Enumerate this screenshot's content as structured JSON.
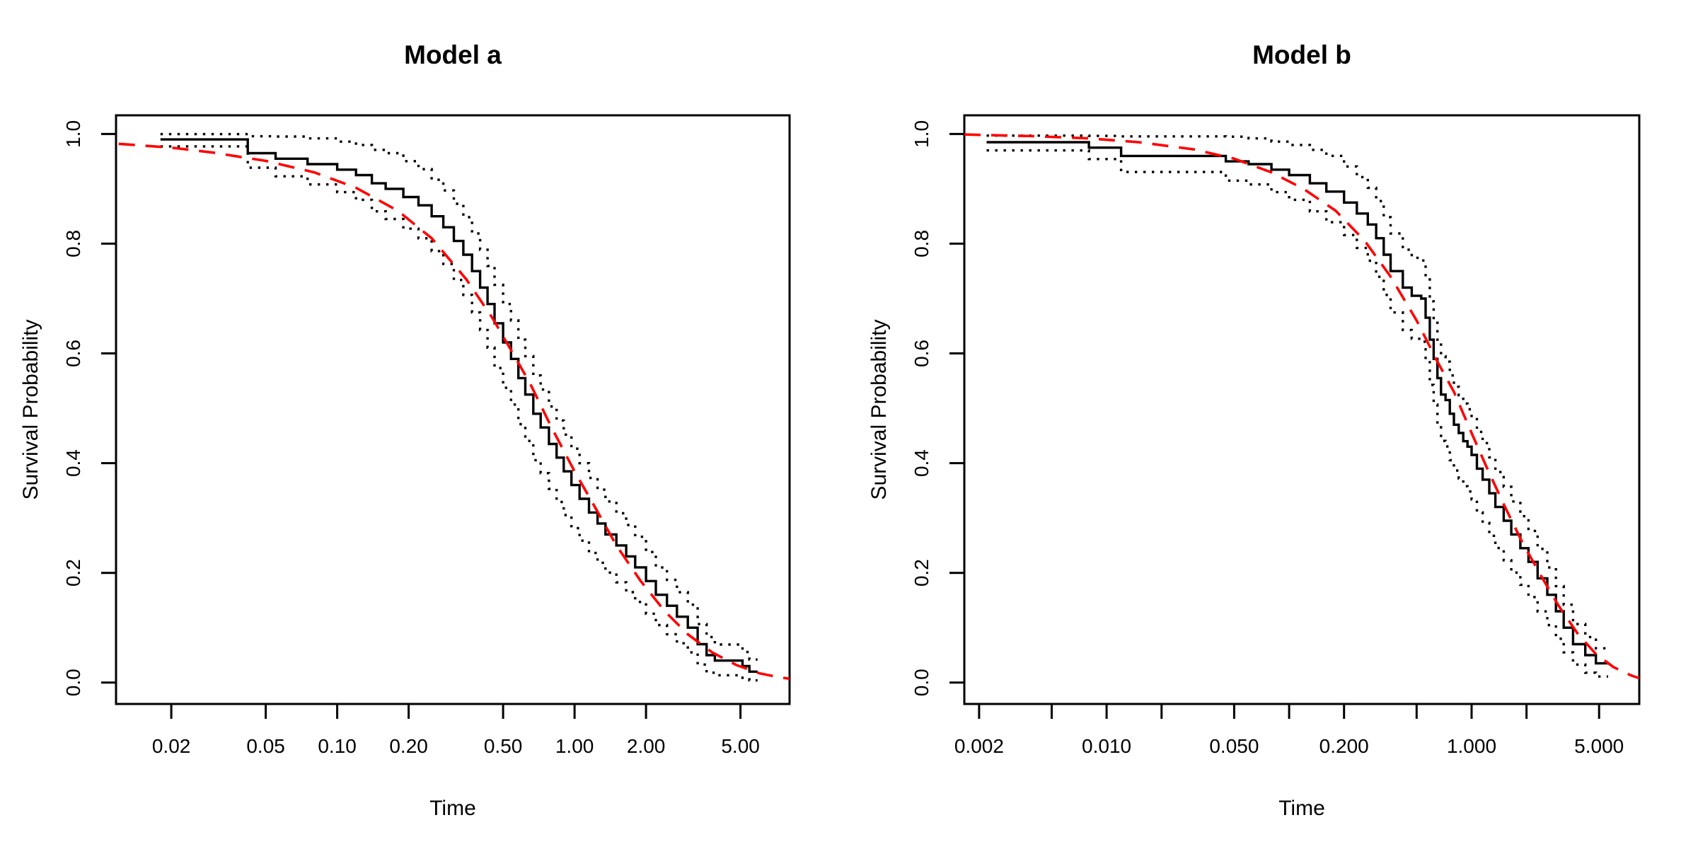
{
  "figure": {
    "background": "#ffffff",
    "foreground": "#000000",
    "fit_color": "#ff0000"
  },
  "chart_data": [
    {
      "type": "line",
      "title": "Model a",
      "xlabel": "Time",
      "ylabel": "Survival Probability",
      "xscale": "log",
      "grid": false,
      "legend": "none",
      "xlim": [
        0.0117,
        8.05
      ],
      "ylim": [
        -0.039,
        1.034
      ],
      "xticks": {
        "values": [
          0.02,
          0.05,
          0.1,
          0.2,
          0.5,
          1.0,
          2.0,
          5.0
        ],
        "labels": [
          "0.02",
          "0.05",
          "0.10",
          "0.20",
          "0.50",
          "1.00",
          "2.00",
          "5.00"
        ]
      },
      "yticks": {
        "values": [
          0.0,
          0.2,
          0.4,
          0.6,
          0.8,
          1.0
        ],
        "labels": [
          "0.0",
          "0.2",
          "0.4",
          "0.6",
          "0.8",
          "1.0"
        ]
      },
      "series": [
        {
          "name": "km-estimate",
          "kind": "step",
          "line": "solid",
          "color": "#000000",
          "t": [
            0.018,
            0.042,
            0.055,
            0.075,
            0.1,
            0.12,
            0.14,
            0.16,
            0.19,
            0.22,
            0.25,
            0.28,
            0.31,
            0.34,
            0.37,
            0.4,
            0.43,
            0.46,
            0.5,
            0.54,
            0.58,
            0.62,
            0.67,
            0.72,
            0.78,
            0.84,
            0.9,
            0.97,
            1.05,
            1.15,
            1.25,
            1.35,
            1.5,
            1.65,
            1.8,
            2.0,
            2.2,
            2.45,
            2.7,
            3.0,
            3.3,
            3.6,
            3.9,
            5.1,
            5.45
          ],
          "s": [
            0.99,
            0.965,
            0.955,
            0.945,
            0.935,
            0.925,
            0.91,
            0.9,
            0.885,
            0.87,
            0.85,
            0.83,
            0.805,
            0.78,
            0.75,
            0.72,
            0.69,
            0.655,
            0.62,
            0.59,
            0.555,
            0.525,
            0.49,
            0.465,
            0.435,
            0.41,
            0.385,
            0.36,
            0.335,
            0.31,
            0.29,
            0.27,
            0.25,
            0.23,
            0.21,
            0.185,
            0.16,
            0.14,
            0.12,
            0.1,
            0.07,
            0.05,
            0.04,
            0.03,
            0.02
          ],
          "end_t": 5.9
        },
        {
          "name": "fitted-parametric",
          "kind": "curve",
          "line": "dashed",
          "color": "#ff0000",
          "t": [
            0.012,
            0.02,
            0.03,
            0.05,
            0.08,
            0.12,
            0.18,
            0.25,
            0.35,
            0.45,
            0.55,
            0.65,
            0.8,
            1.0,
            1.2,
            1.5,
            1.9,
            2.4,
            3.0,
            3.8,
            4.8,
            6.0,
            7.2,
            8.05
          ],
          "s": [
            0.982,
            0.975,
            0.966,
            0.951,
            0.93,
            0.902,
            0.86,
            0.81,
            0.735,
            0.665,
            0.6,
            0.545,
            0.465,
            0.385,
            0.325,
            0.25,
            0.185,
            0.13,
            0.088,
            0.055,
            0.032,
            0.017,
            0.01,
            0.007
          ]
        }
      ],
      "ci_band": {
        "name": "pointwise-confidence-band",
        "line": "dotted",
        "color": "#000000",
        "s_ref": [
          1.0,
          0.985,
          0.95,
          0.9,
          0.8,
          0.65,
          0.5,
          0.35,
          0.2,
          0.1,
          0.05,
          0.02
        ],
        "upper_w": [
          0.005,
          0.012,
          0.045,
          0.065,
          0.068,
          0.07,
          0.07,
          0.066,
          0.055,
          0.042,
          0.033,
          0.022
        ],
        "lower_w": [
          0.008,
          0.015,
          0.035,
          0.055,
          0.072,
          0.082,
          0.085,
          0.078,
          0.062,
          0.045,
          0.032,
          0.016
        ]
      }
    },
    {
      "type": "line",
      "title": "Model b",
      "xlabel": "Time",
      "ylabel": "Survival Probability",
      "xscale": "log",
      "grid": false,
      "legend": "none",
      "xlim": [
        0.00166,
        8.3
      ],
      "ylim": [
        -0.039,
        1.034
      ],
      "xticks": {
        "values": [
          0.002,
          0.005,
          0.01,
          0.02,
          0.05,
          0.1,
          0.2,
          0.5,
          1.0,
          2.0,
          5.0
        ],
        "labels": [
          "0.002",
          "",
          "0.010",
          "",
          "0.050",
          "",
          "0.200",
          "",
          "1.000",
          "",
          "5.000"
        ]
      },
      "yticks": {
        "values": [
          0.0,
          0.2,
          0.4,
          0.6,
          0.8,
          1.0
        ],
        "labels": [
          "0.0",
          "0.2",
          "0.4",
          "0.6",
          "0.8",
          "1.0"
        ]
      },
      "series": [
        {
          "name": "km-estimate",
          "kind": "step",
          "line": "solid",
          "color": "#000000",
          "t": [
            0.0022,
            0.008,
            0.012,
            0.045,
            0.06,
            0.08,
            0.1,
            0.13,
            0.16,
            0.2,
            0.235,
            0.27,
            0.3,
            0.33,
            0.36,
            0.42,
            0.47,
            0.53,
            0.56,
            0.59,
            0.62,
            0.65,
            0.68,
            0.72,
            0.76,
            0.8,
            0.85,
            0.9,
            0.95,
            1.0,
            1.07,
            1.15,
            1.25,
            1.35,
            1.5,
            1.65,
            1.85,
            2.05,
            2.3,
            2.6,
            2.9,
            3.2,
            3.6,
            4.2,
            4.8
          ],
          "s": [
            0.985,
            0.975,
            0.96,
            0.95,
            0.945,
            0.935,
            0.925,
            0.91,
            0.895,
            0.875,
            0.855,
            0.835,
            0.81,
            0.78,
            0.75,
            0.72,
            0.705,
            0.7,
            0.665,
            0.625,
            0.59,
            0.555,
            0.525,
            0.515,
            0.49,
            0.47,
            0.455,
            0.44,
            0.43,
            0.415,
            0.39,
            0.37,
            0.345,
            0.32,
            0.295,
            0.27,
            0.245,
            0.22,
            0.19,
            0.16,
            0.13,
            0.1,
            0.07,
            0.05,
            0.035
          ],
          "end_t": 5.6
        },
        {
          "name": "fitted-parametric",
          "kind": "curve",
          "line": "dashed",
          "color": "#ff0000",
          "t": [
            0.00166,
            0.004,
            0.008,
            0.015,
            0.03,
            0.05,
            0.08,
            0.12,
            0.18,
            0.26,
            0.36,
            0.5,
            0.65,
            0.8,
            1.0,
            1.2,
            1.5,
            1.9,
            2.4,
            3.0,
            3.8,
            4.8,
            6.0,
            7.5,
            8.3
          ],
          "s": [
            0.999,
            0.996,
            0.992,
            0.985,
            0.972,
            0.955,
            0.93,
            0.9,
            0.86,
            0.805,
            0.74,
            0.66,
            0.585,
            0.53,
            0.455,
            0.395,
            0.325,
            0.255,
            0.195,
            0.14,
            0.09,
            0.052,
            0.028,
            0.013,
            0.008
          ]
        }
      ],
      "ci_band": {
        "name": "pointwise-confidence-band",
        "line": "dotted",
        "color": "#000000",
        "s_ref": [
          1.0,
          0.985,
          0.95,
          0.9,
          0.8,
          0.65,
          0.5,
          0.35,
          0.2,
          0.1,
          0.05,
          0.02
        ],
        "upper_w": [
          0.005,
          0.012,
          0.045,
          0.065,
          0.068,
          0.07,
          0.07,
          0.066,
          0.055,
          0.042,
          0.033,
          0.022
        ],
        "lower_w": [
          0.008,
          0.015,
          0.035,
          0.055,
          0.072,
          0.082,
          0.085,
          0.078,
          0.062,
          0.045,
          0.032,
          0.016
        ]
      }
    }
  ]
}
